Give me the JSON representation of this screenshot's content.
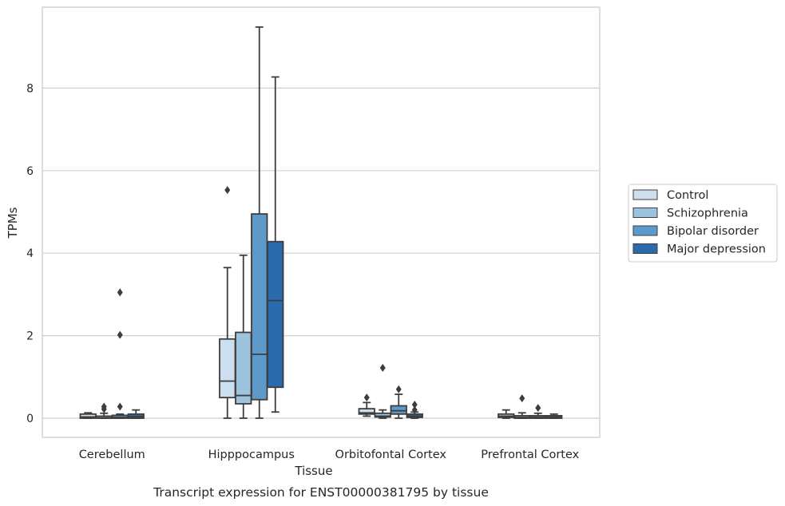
{
  "chart_data": {
    "type": "box",
    "title": "",
    "caption": "Transcript expression for ENST00000381795 by tissue",
    "xlabel": "Tissue",
    "ylabel": "TPMs",
    "ylim": [
      -0.45,
      9.9
    ],
    "yticks": [
      0,
      2,
      4,
      6,
      8
    ],
    "grid": true,
    "legend_position": "right",
    "categories": [
      "Cerebellum",
      "Hipppocampus",
      "Orbitofontal Cortex",
      "Prefrontal Cortex"
    ],
    "series": [
      {
        "name": "Control",
        "color": "#cddfee",
        "boxes": [
          {
            "whislo": 0.0,
            "q1": 0.0,
            "med": 0.03,
            "q3": 0.1,
            "whishi": 0.13,
            "fliers": []
          },
          {
            "whislo": 0.0,
            "q1": 0.5,
            "med": 0.9,
            "q3": 1.92,
            "whishi": 3.65,
            "fliers": [
              5.53
            ]
          },
          {
            "whislo": 0.05,
            "q1": 0.1,
            "med": 0.13,
            "q3": 0.23,
            "whishi": 0.38,
            "fliers": [
              0.5
            ]
          },
          {
            "whislo": 0.0,
            "q1": 0.02,
            "med": 0.05,
            "q3": 0.1,
            "whishi": 0.2,
            "fliers": []
          }
        ]
      },
      {
        "name": "Schizophrenia",
        "color": "#9dc3de",
        "boxes": [
          {
            "whislo": 0.0,
            "q1": 0.0,
            "med": 0.01,
            "q3": 0.05,
            "whishi": 0.12,
            "fliers": [
              0.22,
              0.28
            ]
          },
          {
            "whislo": 0.0,
            "q1": 0.35,
            "med": 0.55,
            "q3": 2.08,
            "whishi": 3.95,
            "fliers": []
          },
          {
            "whislo": 0.0,
            "q1": 0.03,
            "med": 0.05,
            "q3": 0.12,
            "whishi": 0.2,
            "fliers": [
              1.22
            ]
          },
          {
            "whislo": 0.0,
            "q1": 0.0,
            "med": 0.02,
            "q3": 0.06,
            "whishi": 0.13,
            "fliers": [
              0.48
            ]
          }
        ]
      },
      {
        "name": "Bipolar disorder",
        "color": "#5d9ac9",
        "boxes": [
          {
            "whislo": 0.0,
            "q1": 0.0,
            "med": 0.02,
            "q3": 0.07,
            "whishi": 0.1,
            "fliers": [
              0.28,
              2.02,
              3.05
            ]
          },
          {
            "whislo": 0.0,
            "q1": 0.45,
            "med": 1.55,
            "q3": 4.95,
            "whishi": 9.48,
            "fliers": []
          },
          {
            "whislo": 0.0,
            "q1": 0.1,
            "med": 0.18,
            "q3": 0.3,
            "whishi": 0.58,
            "fliers": [
              0.7
            ]
          },
          {
            "whislo": 0.0,
            "q1": 0.0,
            "med": 0.02,
            "q3": 0.06,
            "whishi": 0.12,
            "fliers": [
              0.25
            ]
          }
        ]
      },
      {
        "name": "Major depression",
        "color": "#2a6aad",
        "boxes": [
          {
            "whislo": 0.0,
            "q1": 0.0,
            "med": 0.04,
            "q3": 0.1,
            "whishi": 0.2,
            "fliers": []
          },
          {
            "whislo": 0.15,
            "q1": 0.75,
            "med": 2.85,
            "q3": 4.28,
            "whishi": 8.27,
            "fliers": []
          },
          {
            "whislo": 0.0,
            "q1": 0.02,
            "med": 0.05,
            "q3": 0.1,
            "whishi": 0.15,
            "fliers": [
              0.2,
              0.33
            ]
          },
          {
            "whislo": 0.0,
            "q1": 0.0,
            "med": 0.02,
            "q3": 0.06,
            "whishi": 0.1,
            "fliers": []
          }
        ]
      }
    ]
  }
}
